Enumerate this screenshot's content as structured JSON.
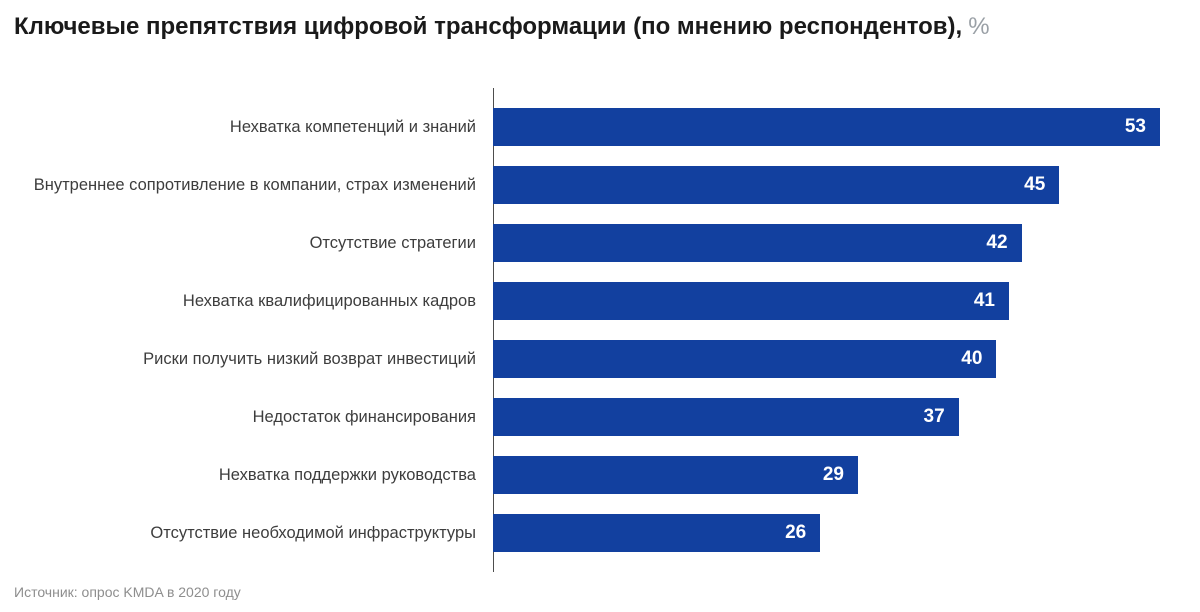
{
  "title": {
    "main": "Ключевые препятствия цифровой трансформации (по мнению респондентов),",
    "suffix": "%"
  },
  "source": "Источник: опрос KMDA в 2020 году",
  "chart_data": {
    "type": "bar",
    "orientation": "horizontal",
    "title": "Ключевые препятствия цифровой трансформации (по мнению респондентов), %",
    "categories": [
      "Нехватка компетенций и знаний",
      "Внутреннее сопротивление в компании, страх изменений",
      "Отсутствие стратегии",
      "Нехватка квалифицированных кадров",
      "Риски получить низкий возврат инвестиций",
      "Недостаток финансирования",
      "Нехватка поддержки руководства",
      "Отсутствие необходимой инфраструктуры"
    ],
    "values": [
      53,
      45,
      42,
      41,
      40,
      37,
      29,
      26
    ],
    "xlabel": "",
    "ylabel": "",
    "xlim": [
      0,
      53
    ],
    "grid": false,
    "legend": false,
    "value_labels_position": "inside-end",
    "colors": {
      "bar": "#12409F",
      "value_label": "#ffffff",
      "axis_line": "#4d4d4d",
      "category_label": "#3d3d3d",
      "title": "#1a1a1a",
      "title_suffix": "#9aa0a6",
      "source": "#8e8e8e"
    }
  }
}
